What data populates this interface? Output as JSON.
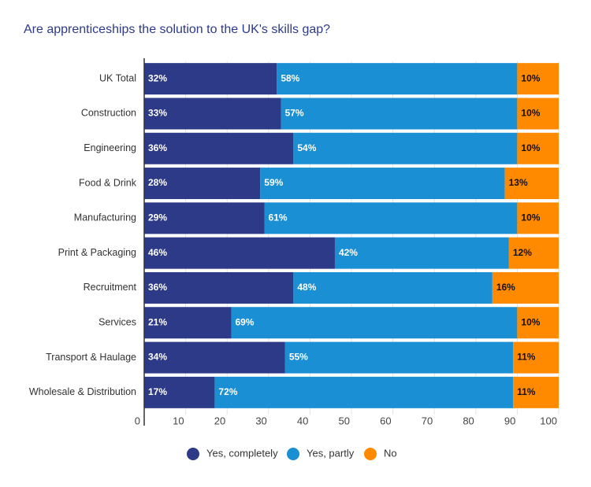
{
  "chart_data": {
    "type": "stacked_barh",
    "title": "Are apprenticeships the solution to the UK's skills gap?",
    "categories": [
      "UK Total",
      "Construction",
      "Engineering",
      "Food & Drink",
      "Manufacturing",
      "Print & Packaging",
      "Recruitment",
      "Services",
      "Transport & Haulage",
      "Wholesale & Distribution"
    ],
    "series": [
      {
        "name": "Yes, completely",
        "color": "#2d3a87",
        "values": [
          32,
          33,
          36,
          28,
          29,
          46,
          36,
          21,
          34,
          17
        ],
        "value_labels": [
          "32%",
          "33%",
          "36%",
          "28%",
          "29%",
          "46%",
          "36%",
          "21%",
          "34%",
          "17%"
        ]
      },
      {
        "name": "Yes, partly",
        "color": "#1b8fd3",
        "values": [
          58,
          57,
          54,
          59,
          61,
          42,
          48,
          69,
          55,
          72
        ],
        "value_labels": [
          "58%",
          "57%",
          "54%",
          "59%",
          "61%",
          "42%",
          "48%",
          "69%",
          "55%",
          "72%"
        ]
      },
      {
        "name": "No",
        "color": "#ff8a00",
        "values": [
          10,
          10,
          10,
          13,
          10,
          12,
          16,
          10,
          11,
          11
        ],
        "value_labels": [
          "10%",
          "10%",
          "10%",
          "13%",
          "10%",
          "12%",
          "16%",
          "10%",
          "11%",
          "11%"
        ]
      }
    ],
    "xlim": [
      0,
      100
    ],
    "xticks": [
      0,
      10,
      20,
      30,
      40,
      50,
      60,
      70,
      80,
      90,
      100
    ],
    "grid": true,
    "legend": "bottom"
  }
}
